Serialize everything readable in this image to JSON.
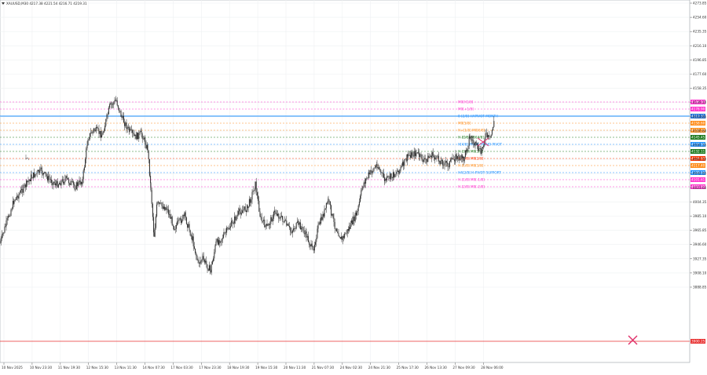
{
  "header": {
    "symbol_line": "XAUUSD,M30  4217.38 4221.54 4216.71 4219.31"
  },
  "colors": {
    "grid": "#eef0f2",
    "candle": "#2b2b2b",
    "price_tag_current": "#1e6fd9",
    "red_line": "#e83030"
  },
  "price_axis": {
    "labels": [
      "4273.85",
      "4254.60",
      "4235.35",
      "4216.10",
      "4196.85",
      "4177.60",
      "4158.35",
      "4139.10",
      "4119.85",
      "4100.60",
      "4081.35",
      "4062.10",
      "4042.85",
      "4023.60",
      "4004.35",
      "3985.10",
      "3965.85",
      "3946.60",
      "3927.35",
      "3908.10",
      "3888.85"
    ]
  },
  "time_axis": {
    "labels": [
      "10 Nov 2025",
      "10 Nov 23:30",
      "11 Nov 19:30",
      "12 Nov 15:30",
      "13 Nov 11:30",
      "14 Nov 07:30",
      "17 Nov 03:30",
      "17 Nov 23:30",
      "18 Nov 19:30",
      "19 Nov 15:30",
      "20 Nov 11:30",
      "21 Nov 07:30",
      "24 Nov 02:30",
      "24 Nov 21:30",
      "25 Nov 17:30",
      "26 Nov 13:30",
      "27 Nov 09:30",
      "28 Nov 06:00"
    ]
  },
  "levels": [
    {
      "name": "M0[H1/8]",
      "label": "M0[H1/8]",
      "tag": "4186.90",
      "color": "#ff33cc"
    },
    {
      "name": "M0[+1/8]",
      "label": "M0[+1/8]",
      "tag": "4178.90",
      "color": "#ff33cc"
    },
    {
      "name": "pivot-h48",
      "label": "0-[2/8] HAPIVOT MONTH",
      "tag": "4168.86",
      "color": "#1e90ff"
    },
    {
      "name": "m0-5-8",
      "label": "M0[5/8]",
      "tag": "4158.60",
      "color": "#ff8c1a"
    },
    {
      "name": "h-1-8",
      "label": "H+[1/8] M0[6/8]",
      "tag": "4152.33",
      "color": "#ff8c1a"
    },
    {
      "name": "h-dark",
      "label": "H-[D/8] M0[4/8]",
      "tag": "4145.45",
      "color": "#1f7a1f"
    },
    {
      "name": "h-pivot",
      "label": "H[4/8] PIVOT TRAVO PIVOT",
      "tag": "4137.90",
      "color": "#1e90ff"
    },
    {
      "name": "h-3-8",
      "label": "H-[3/8] M0[3/8]",
      "tag": "4132.11",
      "color": "#1f7a1f"
    },
    {
      "name": "h-2-8",
      "label": "H-[2/8] M0[2/8]",
      "tag": "4124.60",
      "color": "#ff3300"
    },
    {
      "name": "h-1-8b",
      "label": "H-[1/8] M0[1/8]",
      "tag": "4117.40",
      "color": "#ff8c1a"
    },
    {
      "name": "h-pivot-support",
      "label": "H4[2/8] H-PIVOT SUPPORT",
      "tag": "4109.60",
      "color": "#1e90ff"
    },
    {
      "name": "h-m1",
      "label": "H-[1/8] M0[-1/8]",
      "tag": "4101.61",
      "color": "#ff33cc"
    },
    {
      "name": "h-m2",
      "label": "H-[2/8] M0[-2/8]",
      "tag": "4093.88",
      "color": "#ff33cc"
    }
  ],
  "red_level": {
    "tag": "3900.25"
  },
  "current_price_tag": "4219.31"
}
